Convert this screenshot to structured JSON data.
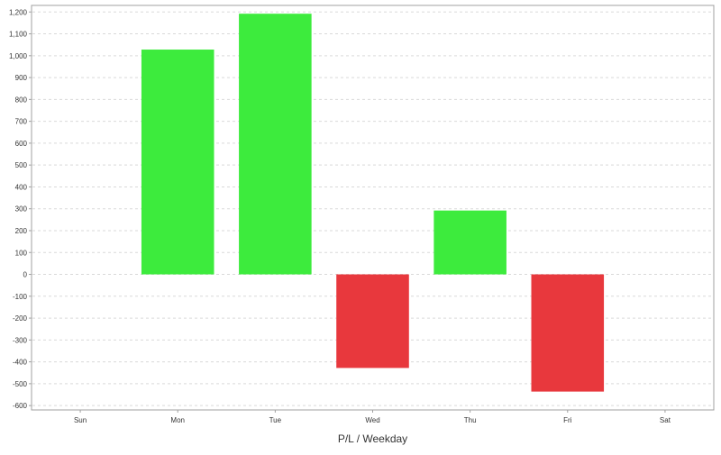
{
  "chart_data": {
    "type": "bar",
    "title": "",
    "xlabel": "P/L / Weekday",
    "ylabel": "",
    "categories": [
      "Sun",
      "Mon",
      "Tue",
      "Wed",
      "Thu",
      "Fri",
      "Sat"
    ],
    "values": [
      0,
      1028,
      1192,
      -428,
      292,
      -536,
      0
    ],
    "ylim": [
      -620,
      1230
    ],
    "yticks": [
      -600,
      -500,
      -400,
      -300,
      -200,
      -100,
      0,
      100,
      200,
      300,
      400,
      500,
      600,
      700,
      800,
      900,
      1000,
      1100,
      1200
    ],
    "ytick_labels": [
      "-600",
      "-500",
      "-400",
      "-300",
      "-200",
      "-100",
      "0",
      "100",
      "200",
      "300",
      "400",
      "500",
      "600",
      "700",
      "800",
      "900",
      "1,000",
      "1,100",
      "1,200"
    ],
    "grid": true,
    "legend": "none",
    "colors": {
      "positive": "#3DEB3D",
      "negative": "#E8383D",
      "grid": "#D9D9D9",
      "axis": "#A0A0A0"
    }
  }
}
